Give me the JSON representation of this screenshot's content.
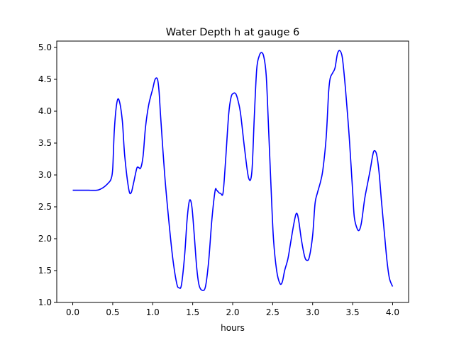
{
  "chart_data": {
    "type": "line",
    "title": "Water Depth h at gauge 6",
    "xlabel": "hours",
    "ylabel": "",
    "xlim": [
      -0.2,
      4.2
    ],
    "ylim": [
      1.0,
      5.1
    ],
    "xticks": [
      0.0,
      0.5,
      1.0,
      1.5,
      2.0,
      2.5,
      3.0,
      3.5,
      4.0
    ],
    "xtick_labels": [
      "0.0",
      "0.5",
      "1.0",
      "1.5",
      "2.0",
      "2.5",
      "3.0",
      "3.5",
      "4.0"
    ],
    "yticks": [
      1.0,
      1.5,
      2.0,
      2.5,
      3.0,
      3.5,
      4.0,
      4.5,
      5.0
    ],
    "ytick_labels": [
      "1.0",
      "1.5",
      "2.0",
      "2.5",
      "3.0",
      "3.5",
      "4.0",
      "4.5",
      "5.0"
    ],
    "grid": false,
    "legend": false,
    "series": [
      {
        "color": "#0000ff",
        "x": [
          0.0,
          0.1,
          0.2,
          0.3,
          0.35,
          0.4,
          0.45,
          0.48,
          0.5,
          0.52,
          0.55,
          0.58,
          0.62,
          0.65,
          0.7,
          0.73,
          0.76,
          0.8,
          0.82,
          0.85,
          0.88,
          0.91,
          0.95,
          1.0,
          1.03,
          1.06,
          1.08,
          1.1,
          1.15,
          1.2,
          1.25,
          1.3,
          1.33,
          1.36,
          1.4,
          1.43,
          1.46,
          1.49,
          1.52,
          1.55,
          1.58,
          1.62,
          1.66,
          1.7,
          1.74,
          1.78,
          1.8,
          1.83,
          1.85,
          1.88,
          1.91,
          1.95,
          1.98,
          2.01,
          2.04,
          2.07,
          2.1,
          2.15,
          2.2,
          2.24,
          2.27,
          2.3,
          2.33,
          2.36,
          2.39,
          2.42,
          2.45,
          2.48,
          2.51,
          2.55,
          2.59,
          2.62,
          2.65,
          2.69,
          2.72,
          2.76,
          2.79,
          2.81,
          2.83,
          2.86,
          2.9,
          2.93,
          2.96,
          3.0,
          3.03,
          3.06,
          3.1,
          3.13,
          3.17,
          3.2,
          3.22,
          3.25,
          3.28,
          3.31,
          3.34,
          3.37,
          3.4,
          3.43,
          3.46,
          3.5,
          3.52,
          3.55,
          3.58,
          3.61,
          3.65,
          3.68,
          3.72,
          3.75,
          3.77,
          3.8,
          3.83,
          3.86,
          3.9,
          3.93,
          3.96,
          4.0
        ],
        "y": [
          2.76,
          2.76,
          2.76,
          2.76,
          2.78,
          2.82,
          2.88,
          2.94,
          3.1,
          3.7,
          4.12,
          4.17,
          3.85,
          3.3,
          2.78,
          2.72,
          2.87,
          3.1,
          3.12,
          3.11,
          3.3,
          3.75,
          4.1,
          4.35,
          4.5,
          4.5,
          4.3,
          3.9,
          3.0,
          2.3,
          1.7,
          1.3,
          1.23,
          1.28,
          1.75,
          2.3,
          2.6,
          2.5,
          2.05,
          1.55,
          1.27,
          1.19,
          1.25,
          1.65,
          2.3,
          2.75,
          2.76,
          2.72,
          2.71,
          2.72,
          3.2,
          3.95,
          4.22,
          4.28,
          4.27,
          4.15,
          3.95,
          3.4,
          2.95,
          3.05,
          3.9,
          4.65,
          4.86,
          4.92,
          4.85,
          4.55,
          3.7,
          2.8,
          2.0,
          1.5,
          1.3,
          1.32,
          1.5,
          1.68,
          1.9,
          2.2,
          2.38,
          2.38,
          2.25,
          1.98,
          1.72,
          1.66,
          1.72,
          2.05,
          2.55,
          2.72,
          2.9,
          3.1,
          3.6,
          4.3,
          4.52,
          4.6,
          4.68,
          4.9,
          4.95,
          4.85,
          4.5,
          4.05,
          3.55,
          2.75,
          2.35,
          2.18,
          2.13,
          2.25,
          2.62,
          2.82,
          3.08,
          3.3,
          3.38,
          3.32,
          3.05,
          2.6,
          2.05,
          1.65,
          1.38,
          1.25
        ]
      }
    ]
  }
}
